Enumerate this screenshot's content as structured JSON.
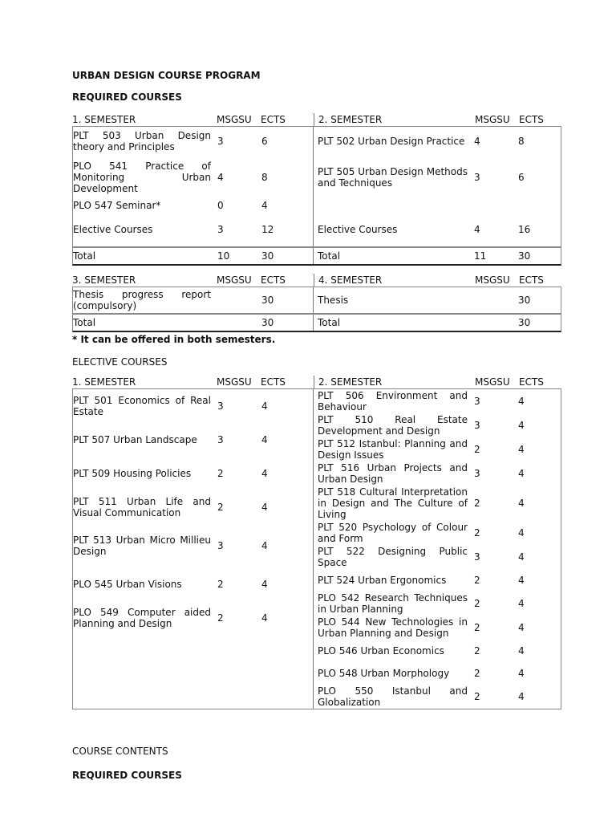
{
  "title": "URBAN DESIGN COURSE  PROGRAM",
  "required_heading": "REQUIRED COURSES",
  "footnote": "* It can be offered in both semesters.",
  "elective_heading": "ELECTIVE COURSES",
  "contents_heading": "COURSE CONTENTS",
  "contents_required_heading": "REQUIRED COURSES",
  "tables": [
    {
      "left": {
        "header": [
          "1. SEMESTER",
          "MSGSU",
          "ECTS"
        ],
        "rows": [
          [
            "PLT 503 Urban Design theory and Principles",
            "3",
            "6"
          ],
          [
            "PLO 541 Practice of Monitoring Urban Development",
            "4",
            "8"
          ],
          [
            "PLO 547 Seminar*",
            "0",
            "4"
          ],
          [
            "Elective Courses",
            "3",
            "12"
          ]
        ],
        "total": [
          "Total",
          "10",
          "30"
        ]
      },
      "right": {
        "header": [
          "2. SEMESTER",
          "MSGSU",
          "ECTS"
        ],
        "rows": [
          [
            "PLT 502 Urban Design Practice",
            "4",
            "8"
          ],
          [
            "PLT 505 Urban Design Methods and Techniques",
            "3",
            "6"
          ],
          [
            "",
            "",
            ""
          ],
          [
            "Elective Courses",
            "4",
            "16"
          ]
        ],
        "total": [
          "Total",
          "11",
          "30"
        ]
      }
    },
    {
      "left": {
        "header": [
          "3. SEMESTER",
          "MSGSU",
          "ECTS"
        ],
        "rows": [
          [
            "Thesis progress report (compulsory)",
            "",
            "30"
          ]
        ],
        "total": [
          "Total",
          "",
          "30"
        ]
      },
      "right": {
        "header": [
          "4. SEMESTER",
          "MSGSU",
          "ECTS"
        ],
        "rows": [
          [
            "Thesis",
            "",
            "30"
          ]
        ],
        "total": [
          "Total",
          "",
          "30"
        ]
      }
    },
    {
      "left": {
        "header": [
          "1. SEMESTER",
          "MSGSU",
          "ECTS"
        ],
        "rows": [
          [
            "PLT 501 Economics of Real Estate",
            "3",
            "4"
          ],
          [
            "PLT 507 Urban Landscape",
            "3",
            "4"
          ],
          [
            "PLT 509 Housing Policies",
            "2",
            "4"
          ],
          [
            "PLT 511 Urban Life and Visual Communication",
            "2",
            "4"
          ],
          [
            "PLT 513 Urban Micro Millieu Design",
            "3",
            "4"
          ],
          [
            "PLO 545 Urban Visions",
            "2",
            "4"
          ],
          [
            "PLO 549 Computer aided Planning and Design",
            "2",
            "4"
          ]
        ]
      },
      "right": {
        "header": [
          "2. SEMESTER",
          "MSGSU",
          "ECTS"
        ],
        "rows": [
          [
            "PLT 506 Environment and Behaviour",
            "3",
            "4"
          ],
          [
            "PLT 510 Real Estate Development and Design",
            "3",
            "4"
          ],
          [
            "PLT 512 Istanbul: Planning and Design Issues",
            "2",
            "4"
          ],
          [
            "PLT 516 Urban Projects and Urban Design",
            "3",
            "4"
          ],
          [
            "PLT 518 Cultural Interpretation in Design and The Culture of Living",
            "2",
            "4"
          ],
          [
            "PLT 520 Psychology of Colour and Form",
            "2",
            "4"
          ],
          [
            "PLT 522 Designing Public Space",
            "3",
            "4"
          ],
          [
            "PLT 524 Urban Ergonomics",
            "2",
            "4"
          ],
          [
            "PLO 542 Research Techniques in Urban Planning",
            "2",
            "4"
          ],
          [
            "PLO 544 New Technologies in Urban Planning and Design",
            "2",
            "4"
          ],
          [
            "PLO 546 Urban Economics",
            "2",
            "4"
          ],
          [
            "PLO 548 Urban Morphology",
            "2",
            "4"
          ],
          [
            "PLO 550 Istanbul and Globalization",
            "2",
            "4"
          ]
        ]
      }
    }
  ]
}
